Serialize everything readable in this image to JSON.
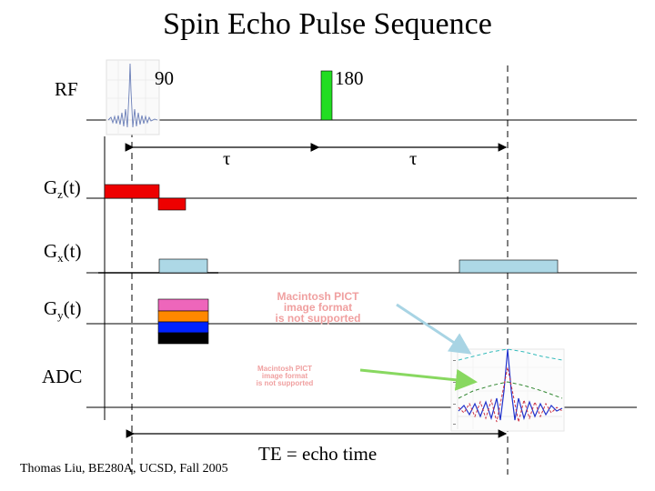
{
  "title": "Spin Echo Pulse Sequence",
  "rows": {
    "rf": "RF",
    "gz": {
      "base": "G",
      "sub": "z",
      "suffix": "(t)"
    },
    "gx": {
      "base": "G",
      "sub": "x",
      "suffix": "(t)"
    },
    "gy": {
      "base": "G",
      "sub": "y",
      "suffix": "(t)"
    },
    "adc": "ADC"
  },
  "pulses": {
    "p90": "90",
    "p180": "180"
  },
  "tau1": "τ",
  "tau2": "τ",
  "te_label": "TE = echo time",
  "credit": "Thomas Liu, BE280A, UCSD, Fall 2005",
  "pict1": {
    "line1": "Macintosh PICT",
    "line2": "image format",
    "line3": "is not supported"
  },
  "pict2": {
    "line1": "Macintosh PICT",
    "line2": "image format",
    "line3": "is not supported"
  },
  "colors": {
    "rf180": "#22dd22",
    "gz": "#ee0000",
    "gx": "#add8e6",
    "gy_steps": [
      "#ee66bb",
      "#ff8800",
      "#0022ff",
      "#000000"
    ],
    "arrow_blue": "#a8d4e4",
    "arrow_green": "#88d860",
    "pict_text": "#f0a0a0"
  }
}
